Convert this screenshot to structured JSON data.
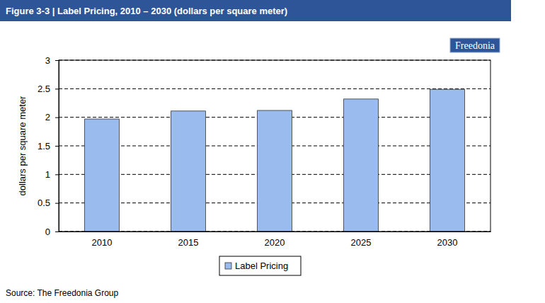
{
  "chart_data": {
    "type": "bar",
    "title": "Figure 3-3 | Label Pricing, 2010 – 2030 (dollars per square meter)",
    "y_label": "dollars per square meter",
    "categories": [
      "2010",
      "2015",
      "2020",
      "2025",
      "2030"
    ],
    "series": [
      {
        "name": "Label Pricing",
        "color": "#99bbee",
        "values": [
          1.97,
          2.11,
          2.12,
          2.32,
          2.49
        ]
      }
    ],
    "ylim": [
      0,
      3
    ],
    "yticks": [
      0,
      0.5,
      1,
      1.5,
      2,
      2.5,
      3
    ],
    "grid": true,
    "legend": "bottom",
    "logo": "Freedonia",
    "source": "Source: The Freedonia Group"
  }
}
